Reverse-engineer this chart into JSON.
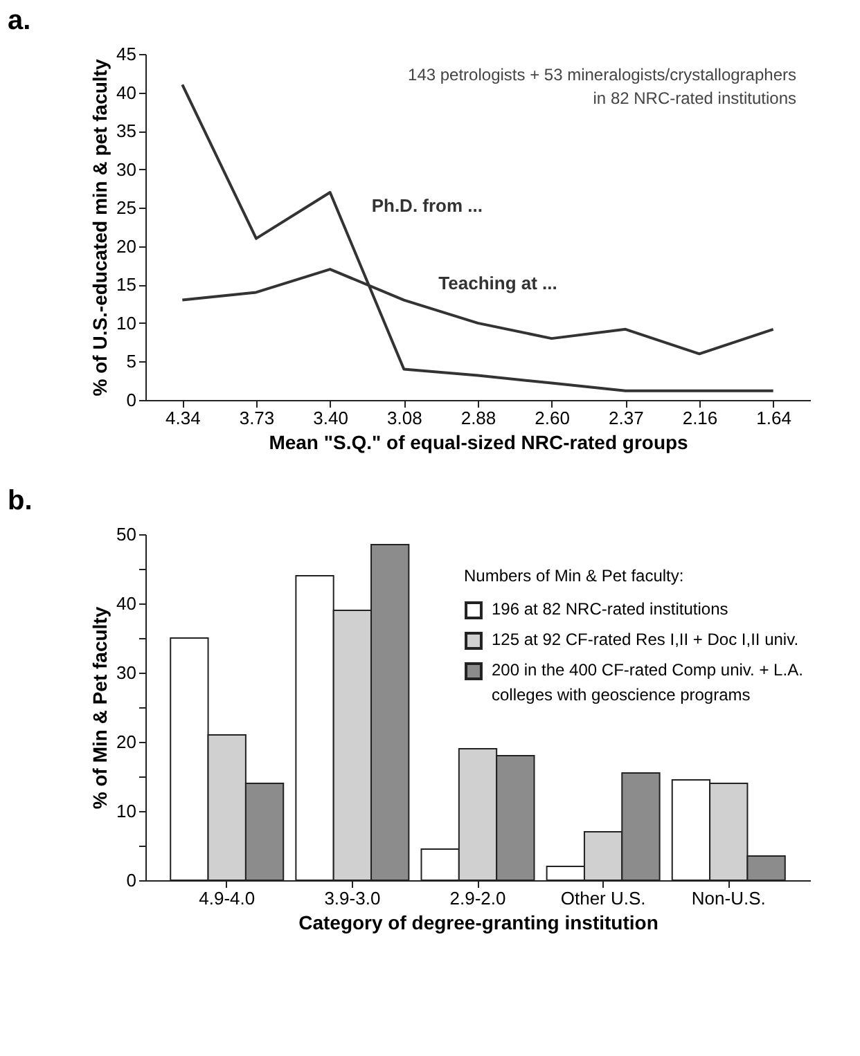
{
  "chart_data": [
    {
      "type": "line",
      "title": "a.",
      "xlabel": "Mean \"S.Q.\" of equal-sized NRC-rated groups",
      "ylabel": "% of U.S.-educated min & pet faculty",
      "categories": [
        "4.34",
        "3.73",
        "3.40",
        "3.08",
        "2.88",
        "2.60",
        "2.37",
        "2.16",
        "1.64"
      ],
      "series": [
        {
          "name": "Ph.D. from ...",
          "color": "#333333",
          "values": [
            41,
            21,
            27,
            4,
            3.2,
            2.2,
            1.2,
            1.2,
            1.2
          ]
        },
        {
          "name": "Teaching at ...",
          "color": "#333333",
          "values": [
            13,
            14,
            17,
            13,
            10,
            8,
            9.2,
            6,
            9.2
          ]
        }
      ],
      "ylim": [
        0,
        45
      ],
      "yticks": [
        0,
        5,
        10,
        15,
        20,
        25,
        30,
        35,
        40,
        45
      ],
      "grid": false,
      "marker": "none",
      "line_style": "solid",
      "annotations": [
        "143 petrologists + 53 mineralogists/crystallographers\nin 82 NRC-rated institutions"
      ]
    },
    {
      "type": "bar",
      "title": "b.",
      "xlabel": "Category of degree-granting institution",
      "ylabel": "% of Min & Pet faculty",
      "legend_title": "Numbers of Min & Pet faculty:",
      "categories": [
        "4.9-4.0",
        "3.9-3.0",
        "2.9-2.0",
        "Other U.S.",
        "Non-U.S."
      ],
      "series": [
        {
          "name": "196 at 82 NRC-rated institutions",
          "color": "#ffffff",
          "values": [
            35,
            44,
            4.5,
            2,
            14.5
          ]
        },
        {
          "name": "125 at 92 CF-rated Res I,II + Doc I,II univ.",
          "color": "#d0d0d0",
          "values": [
            21,
            39,
            19,
            7,
            14
          ]
        },
        {
          "name": "200 in the 400 CF-rated Comp univ. + L.A.\ncolleges with geoscience programs",
          "color": "#8c8c8c",
          "values": [
            14,
            48.5,
            18,
            15.5,
            3.5
          ]
        }
      ],
      "ylim": [
        0,
        50
      ],
      "yticks": [
        0,
        {
          "value": 5,
          "label": null
        },
        10,
        {
          "value": 15,
          "label": null
        },
        20,
        {
          "value": 25,
          "label": null
        },
        30,
        {
          "value": 35,
          "label": null
        },
        40,
        {
          "value": 45,
          "label": null
        },
        50
      ],
      "grid": false,
      "legend": "top right"
    }
  ]
}
